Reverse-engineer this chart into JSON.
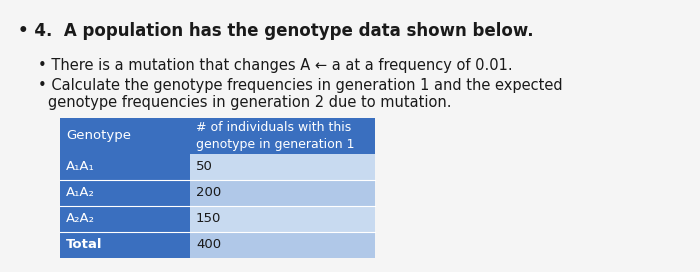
{
  "title": "• 4.  A population has the genotype data shown below.",
  "bullet1": "• There is a mutation that changes A ← a at a frequency of 0.01.",
  "bullet2_line1": "• Calculate the genotype frequencies in generation 1 and the expected",
  "bullet2_line2": "genotype frequencies in generation 2 due to mutation.",
  "table_header_col1": "Genotype",
  "table_header_col2": "# of individuals with this\ngenotype in generation 1",
  "table_rows": [
    [
      "A₁A₁",
      "50"
    ],
    [
      "A₁A₂",
      "200"
    ],
    [
      "A₂A₂",
      "150"
    ],
    [
      "Total",
      "400"
    ]
  ],
  "header_bg": "#3a6fbf",
  "header_text_color": "#ffffff",
  "row_bg_light": "#c8daf0",
  "row_bg_medium": "#b0c8e8",
  "row_label_bg": "#3a6fbf",
  "row_label_text": "#ffffff",
  "bg_color": "#f5f5f5",
  "title_fontsize": 12,
  "body_fontsize": 10.5,
  "table_fontsize": 9.5
}
